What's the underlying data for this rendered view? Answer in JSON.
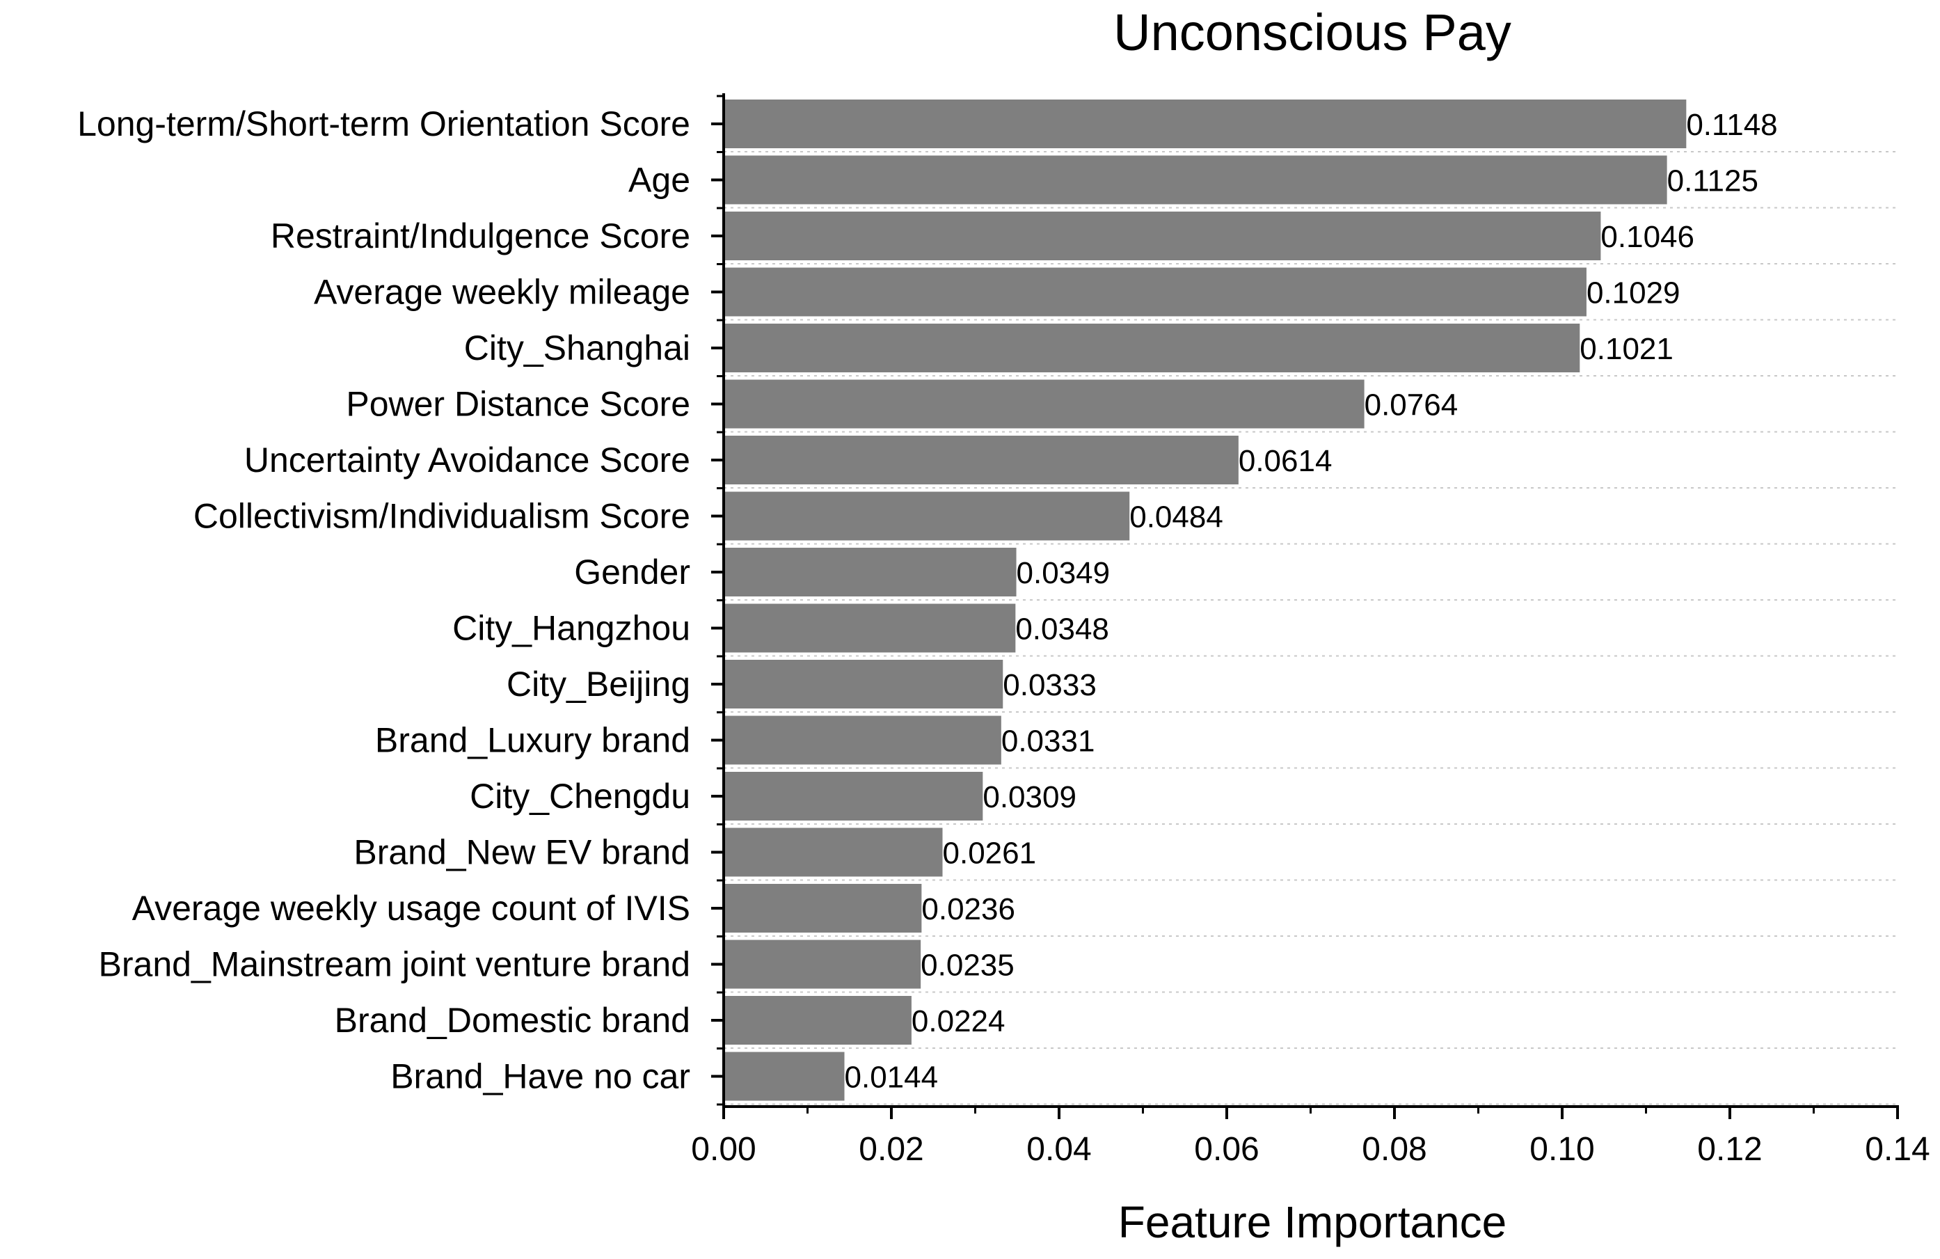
{
  "chart_data": {
    "type": "bar",
    "orientation": "horizontal",
    "title": "Unconscious Pay",
    "xlabel": "Feature Importance",
    "ylabel": "",
    "xlim": [
      0,
      0.14
    ],
    "x_ticks": [
      "0.00",
      "0.02",
      "0.04",
      "0.06",
      "0.08",
      "0.10",
      "0.12",
      "0.14"
    ],
    "grid": "horizontal dotted",
    "bar_color": "#7f7f7f",
    "categories": [
      "Long-term/Short-term Orientation Score",
      "Age",
      "Restraint/Indulgence Score",
      "Average weekly mileage",
      "City_Shanghai",
      "Power Distance Score",
      "Uncertainty Avoidance Score",
      "Collectivism/Individualism Score",
      "Gender",
      "City_Hangzhou",
      "City_Beijing",
      "Brand_Luxury brand",
      "City_Chengdu",
      "Brand_New EV brand",
      "Average weekly usage count of IVIS",
      "Brand_Mainstream joint venture brand",
      "Brand_Domestic brand",
      "Brand_Have no car"
    ],
    "values": [
      0.1148,
      0.1125,
      0.1046,
      0.1029,
      0.1021,
      0.0764,
      0.0614,
      0.0484,
      0.0349,
      0.0348,
      0.0333,
      0.0331,
      0.0309,
      0.0261,
      0.0236,
      0.0235,
      0.0224,
      0.0144
    ],
    "value_labels": [
      "0.1148",
      "0.1125",
      "0.1046",
      "0.1029",
      "0.1021",
      "0.0764",
      "0.0614",
      "0.0484",
      "0.0349",
      "0.0348",
      "0.0333",
      "0.0331",
      "0.0309",
      "0.0261",
      "0.0236",
      "0.0235",
      "0.0224",
      "0.0144"
    ]
  }
}
